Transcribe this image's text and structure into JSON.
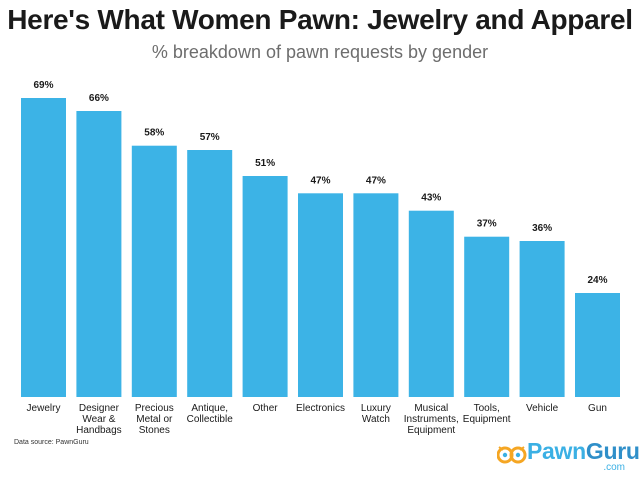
{
  "header": {
    "title": "Here's What Women Pawn: Jewelry and Apparel",
    "subtitle": "% breakdown of pawn requests by gender"
  },
  "footer": {
    "source": "Data source: PawnGuru",
    "logo_pawn": "Pawn",
    "logo_guru": "Guru",
    "logo_com": ".com"
  },
  "colors": {
    "bar": "#3cb3e6",
    "text": "#1a1a1a",
    "logo_orange": "#f5a623"
  },
  "chart_data": {
    "type": "bar",
    "title": "Here's What Women Pawn: Jewelry and Apparel",
    "subtitle": "% breakdown of pawn requests by gender",
    "xlabel": "",
    "ylabel": "",
    "ylim": [
      0,
      69
    ],
    "grid": false,
    "legend": "none",
    "categories": [
      [
        "Jewelry"
      ],
      [
        "Designer",
        "Wear &",
        "Handbags"
      ],
      [
        "Precious",
        "Metal or",
        "Stones"
      ],
      [
        "Antique,",
        "Collectible"
      ],
      [
        "Other"
      ],
      [
        "Electronics"
      ],
      [
        "Luxury",
        "Watch"
      ],
      [
        "Musical",
        "Instruments,",
        "Equipment"
      ],
      [
        "Tools,",
        "Equipment"
      ],
      [
        "Vehicle"
      ],
      [
        "Gun"
      ]
    ],
    "values": [
      69,
      66,
      58,
      57,
      51,
      47,
      47,
      43,
      37,
      36,
      24
    ],
    "value_labels": [
      "69%",
      "66%",
      "58%",
      "57%",
      "51%",
      "47%",
      "47%",
      "43%",
      "37%",
      "36%",
      "24%"
    ]
  }
}
